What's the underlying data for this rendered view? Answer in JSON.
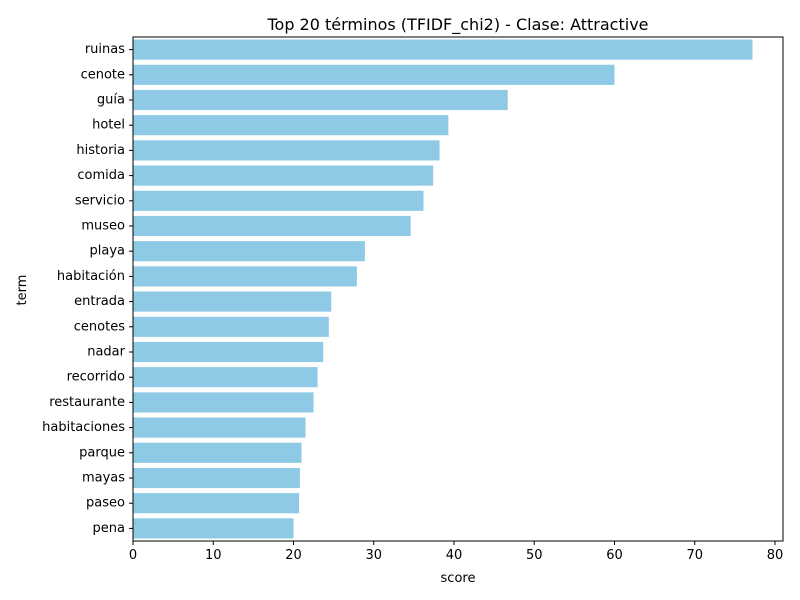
{
  "chart_data": {
    "type": "bar",
    "orientation": "horizontal",
    "title": "Top 20 términos (TFIDF_chi2) - Clase: Attractive",
    "xlabel": "score",
    "ylabel": "term",
    "xlim": [
      0,
      81
    ],
    "xticks": [
      0,
      10,
      20,
      30,
      40,
      50,
      60,
      70,
      80
    ],
    "bar_color": "#8ecae6",
    "grid": false,
    "categories": [
      "ruinas",
      "cenote",
      "guía",
      "hotel",
      "historia",
      "comida",
      "servicio",
      "museo",
      "playa",
      "habitación",
      "entrada",
      "cenotes",
      "nadar",
      "recorrido",
      "restaurante",
      "habitaciones",
      "parque",
      "mayas",
      "paseo",
      "pena"
    ],
    "values": [
      77.2,
      60.0,
      46.7,
      39.3,
      38.2,
      37.4,
      36.2,
      34.6,
      28.9,
      27.9,
      24.7,
      24.4,
      23.7,
      23.0,
      22.5,
      21.5,
      21.0,
      20.8,
      20.7,
      20.0
    ]
  }
}
